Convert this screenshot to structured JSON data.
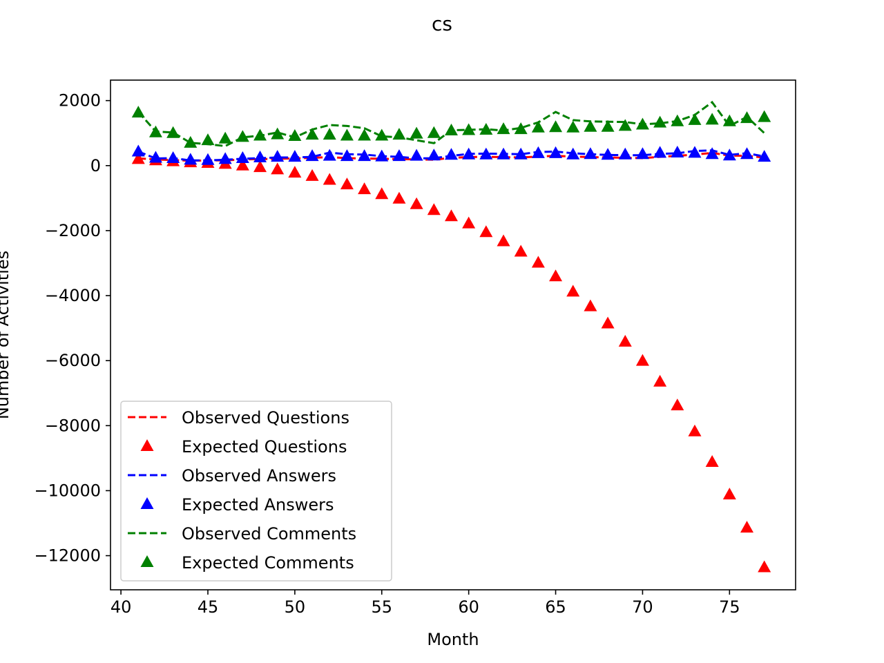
{
  "chart_data": {
    "type": "line",
    "title": "cs",
    "xlabel": "Month",
    "ylabel": "Number of Activities",
    "xlim": [
      39.4,
      78.8
    ],
    "ylim": [
      -13050,
      2630
    ],
    "xticks": [
      40,
      45,
      50,
      55,
      60,
      65,
      70,
      75
    ],
    "xtick_labels": [
      "40",
      "45",
      "50",
      "55",
      "60",
      "65",
      "70",
      "75"
    ],
    "yticks": [
      2000,
      0,
      -2000,
      -4000,
      -6000,
      -8000,
      -10000,
      -12000
    ],
    "ytick_labels": [
      "2000",
      "0",
      "−2000",
      "−4000",
      "−6000",
      "−8000",
      "−10000",
      "−12000"
    ],
    "grid": false,
    "legend_position": "lower-left",
    "x": [
      41,
      42,
      43,
      44,
      45,
      46,
      47,
      48,
      49,
      50,
      51,
      52,
      53,
      54,
      55,
      56,
      57,
      58,
      59,
      60,
      61,
      62,
      63,
      64,
      65,
      66,
      67,
      68,
      69,
      70,
      71,
      72,
      73,
      74,
      75,
      76,
      77
    ],
    "series": [
      {
        "name": "Observed Questions",
        "style": "dashed-line",
        "color": "#ff0000",
        "values": [
          220,
          190,
          170,
          150,
          160,
          160,
          190,
          200,
          210,
          220,
          240,
          260,
          230,
          220,
          210,
          200,
          190,
          180,
          240,
          260,
          270,
          260,
          250,
          280,
          300,
          280,
          260,
          250,
          240,
          230,
          270,
          300,
          340,
          390,
          310,
          300,
          250
        ]
      },
      {
        "name": "Expected Questions",
        "style": "triangle-marker",
        "color": "#ff0000",
        "values": [
          200,
          160,
          130,
          100,
          80,
          50,
          0,
          -50,
          -120,
          -220,
          -320,
          -440,
          -580,
          -730,
          -880,
          -1020,
          -1190,
          -1370,
          -1560,
          -1780,
          -2050,
          -2330,
          -2650,
          -2990,
          -3410,
          -3880,
          -4330,
          -4860,
          -5420,
          -6010,
          -6650,
          -7380,
          -8180,
          -9120,
          -10120,
          -11140,
          -12360
        ]
      },
      {
        "name": "Observed Answers",
        "style": "dashed-line",
        "color": "#0000ff",
        "values": [
          430,
          220,
          230,
          160,
          160,
          180,
          210,
          230,
          250,
          250,
          270,
          400,
          350,
          340,
          290,
          270,
          220,
          230,
          300,
          360,
          370,
          360,
          350,
          420,
          430,
          380,
          350,
          330,
          320,
          320,
          360,
          380,
          450,
          470,
          330,
          380,
          280
        ]
      },
      {
        "name": "Expected Answers",
        "style": "triangle-marker",
        "color": "#0000ff",
        "values": [
          430,
          240,
          230,
          180,
          170,
          200,
          230,
          250,
          270,
          270,
          290,
          300,
          290,
          290,
          280,
          290,
          300,
          310,
          330,
          340,
          340,
          340,
          340,
          380,
          380,
          340,
          350,
          330,
          340,
          350,
          390,
          400,
          390,
          350,
          310,
          350,
          270
        ]
      },
      {
        "name": "Observed Comments",
        "style": "dashed-line",
        "color": "#008000",
        "values": [
          1650,
          1050,
          1020,
          700,
          660,
          600,
          870,
          920,
          1020,
          870,
          1110,
          1250,
          1220,
          1150,
          900,
          870,
          780,
          690,
          1090,
          1100,
          1120,
          1080,
          1160,
          1330,
          1650,
          1400,
          1360,
          1350,
          1340,
          1270,
          1300,
          1370,
          1560,
          1950,
          1220,
          1500,
          1000
        ]
      },
      {
        "name": "Expected Comments",
        "style": "triangle-marker",
        "color": "#008000",
        "values": [
          1630,
          1020,
          1000,
          700,
          780,
          830,
          880,
          920,
          960,
          910,
          950,
          950,
          920,
          920,
          920,
          950,
          980,
          1000,
          1080,
          1090,
          1100,
          1120,
          1120,
          1170,
          1180,
          1170,
          1190,
          1190,
          1220,
          1260,
          1320,
          1360,
          1400,
          1410,
          1360,
          1460,
          1490
        ]
      }
    ]
  }
}
